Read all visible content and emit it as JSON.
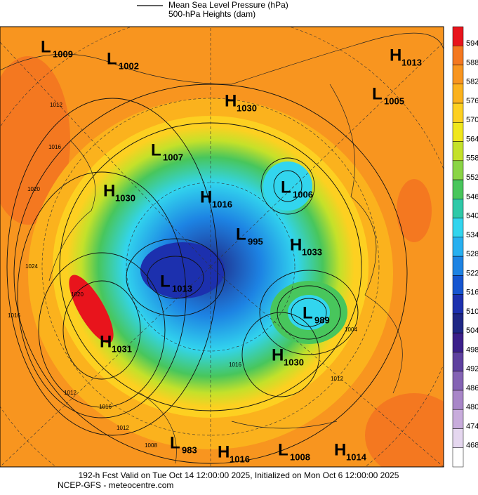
{
  "legend": {
    "line1": "Mean Sea Level Pressure (hPa)",
    "line2": "500-hPa Heights (dam)"
  },
  "colorbar": {
    "labels": [
      "594",
      "588",
      "582",
      "576",
      "570",
      "564",
      "558",
      "552",
      "546",
      "540",
      "534",
      "528",
      "522",
      "516",
      "510",
      "504",
      "498",
      "492",
      "486",
      "480",
      "474",
      "468"
    ],
    "colors": [
      "#e8141c",
      "#f47820",
      "#f8951f",
      "#fbb21d",
      "#fdd021",
      "#f0e71c",
      "#c4e12a",
      "#8ad545",
      "#48c65c",
      "#2ec9a8",
      "#32d5ee",
      "#27b0f0",
      "#1d83e3",
      "#1555d0",
      "#1c30ae",
      "#1f2785",
      "#3b1f8a",
      "#5e409f",
      "#8463b4",
      "#a886c8",
      "#c8acdc",
      "#e5d7ef",
      "#ffffff"
    ]
  },
  "centers": [
    {
      "letter": "L",
      "value": "1009"
    },
    {
      "letter": "L",
      "value": "1002"
    },
    {
      "letter": "H",
      "value": "1013"
    },
    {
      "letter": "L",
      "value": "1005"
    },
    {
      "letter": "H",
      "value": "1030"
    },
    {
      "letter": "L",
      "value": "1007"
    },
    {
      "letter": "L",
      "value": "1006"
    },
    {
      "letter": "H",
      "value": "1030"
    },
    {
      "letter": "H",
      "value": "1016"
    },
    {
      "letter": "L",
      "value": "995"
    },
    {
      "letter": "H",
      "value": "1033"
    },
    {
      "letter": "L",
      "value": "1013"
    },
    {
      "letter": "L",
      "value": "989"
    },
    {
      "letter": "H",
      "value": "1031"
    },
    {
      "letter": "H",
      "value": "1030"
    },
    {
      "letter": "L",
      "value": "983"
    },
    {
      "letter": "H",
      "value": "1016"
    },
    {
      "letter": "L",
      "value": "1008"
    },
    {
      "letter": "H",
      "value": "1014"
    }
  ],
  "contour_labels": [
    "1012",
    "1016",
    "1020",
    "1024",
    "1016",
    "1012",
    "1020",
    "1016",
    "1012",
    "1008",
    "1004",
    "1012",
    "1016"
  ],
  "footer": {
    "line1": "192-h Fcst Valid on Tue Oct 14 12:00:00 2025, Initialized on Mon Oct  6 12:00:00 2025",
    "line2": "NCEP-GFS  - meteocentre.com"
  }
}
